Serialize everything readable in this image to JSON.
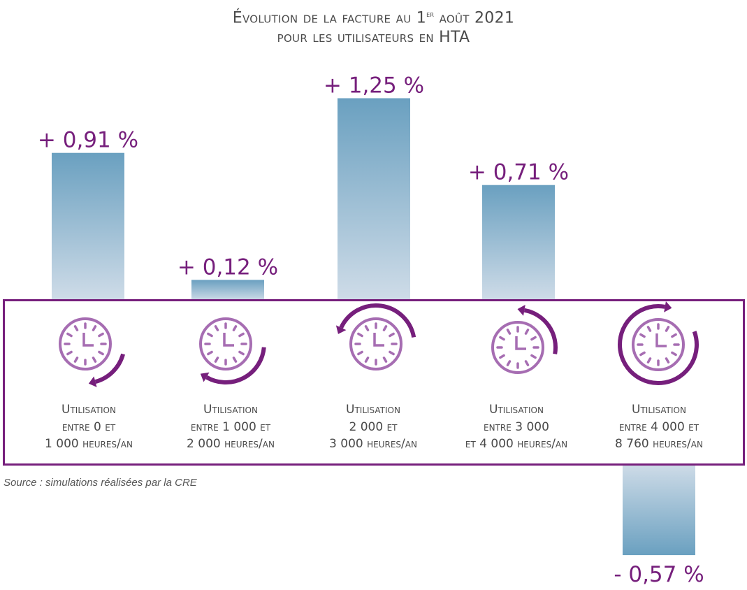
{
  "chart_data": {
    "type": "bar",
    "title": "Évolution de la facture au 1er août 2021",
    "subtitle": "pour les utilisateurs en HTA",
    "xlabel": "",
    "ylabel": "",
    "grid": false,
    "categories": [
      "Utilisation entre 0 et 1 000 heures/an",
      "Utilisation entre 1 000 et 2 000 heures/an",
      "Utilisation 2 000 et 3 000 heures/an",
      "Utilisation entre 3 000 et 4 000 heures/an",
      "Utilisation entre 4 000 et 8 760 heures/an"
    ],
    "values": [
      0.91,
      0.12,
      1.25,
      0.71,
      -0.57
    ],
    "value_labels": [
      "+ 0,91 %",
      "+ 0,12 %",
      "+ 1,25 %",
      "+ 0,71 %",
      "- 0,57 %"
    ],
    "unit": "%",
    "ylim": [
      -0.57,
      1.25
    ]
  },
  "title": {
    "line1_prefix": "Évolution de la facture au 1",
    "line1_sup": "er",
    "line1_suffix": " août 2021",
    "line2": "pour les utilisateurs en HTA"
  },
  "categories": [
    {
      "line1": "Utilisation",
      "line2": "entre 0 et",
      "line3": "1 000 heures/an",
      "icon": "clock-arrow-short-icon"
    },
    {
      "line1": "Utilisation",
      "line2": "entre 1 000 et",
      "line3": "2 000 heures/an",
      "icon": "clock-arrow-quarter-icon"
    },
    {
      "line1": "Utilisation",
      "line2": "2 000 et",
      "line3": "3 000 heures/an",
      "icon": "clock-arrow-half-icon"
    },
    {
      "line1": "Utilisation",
      "line2": "entre 3 000",
      "line3": "et 4 000 heures/an",
      "icon": "clock-arrow-three-quarter-icon"
    },
    {
      "line1": "Utilisation",
      "line2": "entre 4 000 et",
      "line3": "8 760 heures/an",
      "icon": "clock-arrow-full-icon"
    }
  ],
  "source": "Source : simulations réalisées par la CRE",
  "colors": {
    "accent": "#761f7c",
    "clock": "#a66db2",
    "bar_top": "#6aa0c0",
    "bar_bottom": "#cfdce8",
    "text": "#4a4a4a"
  }
}
